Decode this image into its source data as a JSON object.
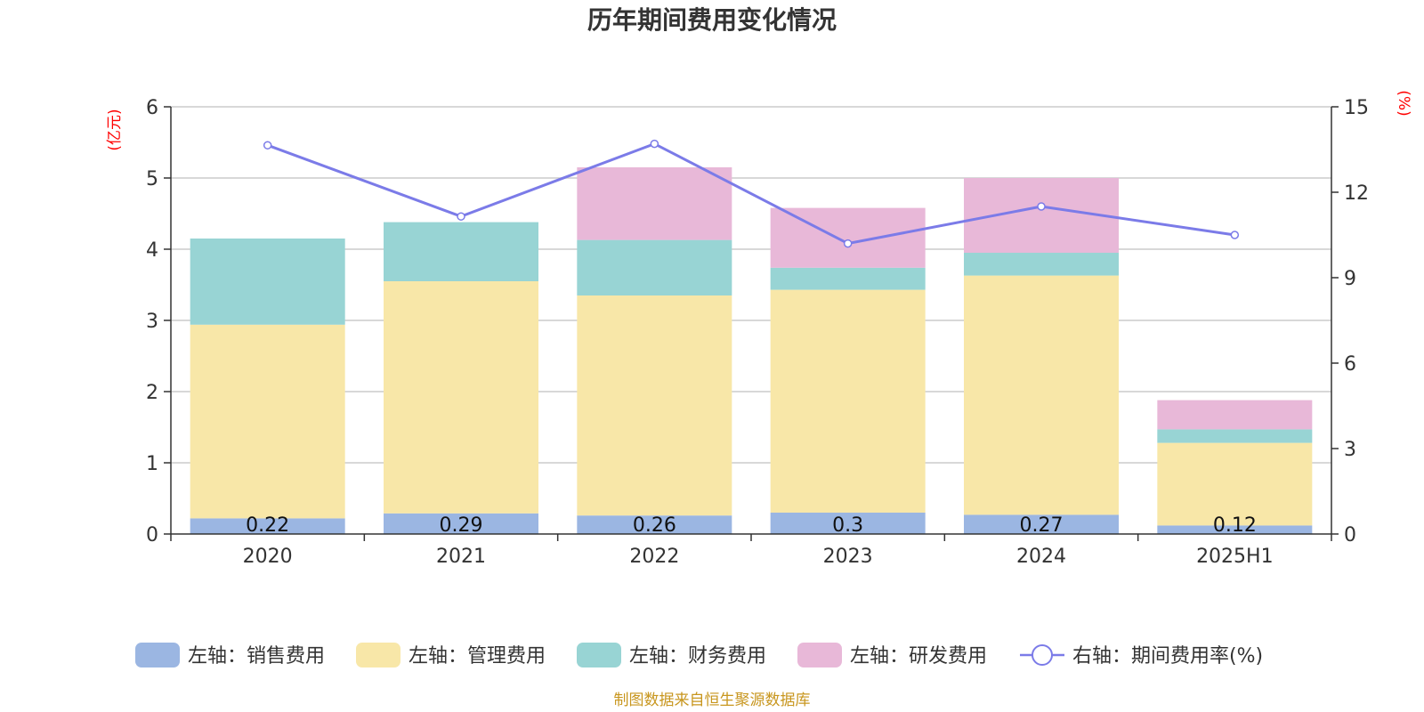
{
  "chart_data": {
    "type": "bar",
    "title": "历年期间费用变化情况",
    "categories": [
      "2020",
      "2021",
      "2022",
      "2023",
      "2024",
      "2025H1"
    ],
    "series": [
      {
        "name": "左轴：销售费用",
        "axis": "left",
        "color": "#9bb6e2",
        "values": [
          0.22,
          0.29,
          0.26,
          0.3,
          0.27,
          0.12
        ],
        "labels": [
          "0.22",
          "0.29",
          "0.26",
          "0.3",
          "0.27",
          "0.12"
        ]
      },
      {
        "name": "左轴：管理费用",
        "axis": "left",
        "color": "#f8e7a8",
        "values": [
          2.72,
          3.26,
          3.09,
          3.13,
          3.36,
          1.16
        ]
      },
      {
        "name": "左轴：财务费用",
        "axis": "left",
        "color": "#98d4d4",
        "values": [
          1.21,
          0.83,
          0.78,
          0.31,
          0.32,
          0.19
        ]
      },
      {
        "name": "左轴：研发费用",
        "axis": "left",
        "color": "#e8b8d8",
        "values": [
          0,
          0,
          1.02,
          0.84,
          1.05,
          0.41
        ]
      },
      {
        "name": "右轴：期间费用率(%)",
        "axis": "right",
        "type": "line",
        "color": "#7b7be8",
        "values": [
          13.65,
          11.15,
          13.7,
          10.2,
          11.5,
          10.5
        ]
      }
    ],
    "y_left": {
      "unit": "(亿元)",
      "range": [
        0,
        6
      ],
      "ticks": [
        "0",
        "1",
        "2",
        "3",
        "4",
        "5",
        "6"
      ]
    },
    "y_right": {
      "unit": "(%)",
      "range": [
        0,
        15
      ],
      "ticks": [
        "0",
        "3",
        "6",
        "9",
        "12",
        "15"
      ]
    },
    "grid": true,
    "legend_position": "bottom",
    "source": "制图数据来自恒生聚源数据库"
  }
}
